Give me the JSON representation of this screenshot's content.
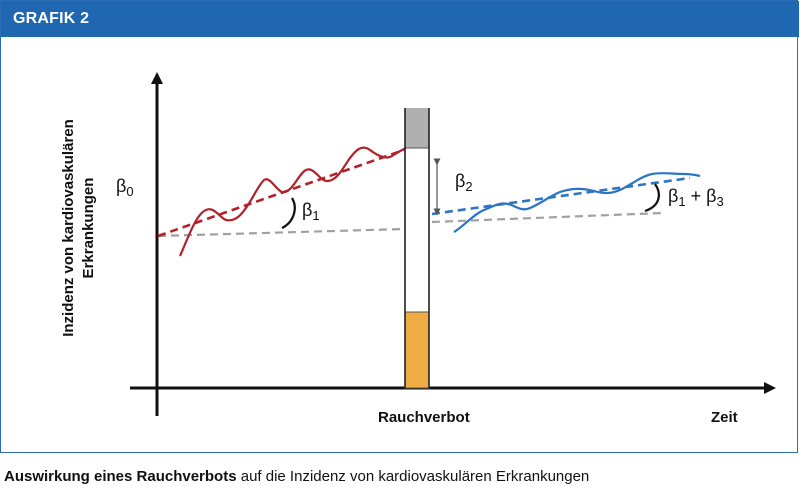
{
  "figure": {
    "label": "GRAFIK 2",
    "header_color": "#1f67b1"
  },
  "diagram": {
    "y_axis_label_line1": "Inzidenz von kardiovaskulären",
    "y_axis_label_line2": "Erkrankungen",
    "x_axis_label": "Zeit",
    "intervention_label": "Rauchverbot",
    "beta0": {
      "base": "β",
      "sub": "0"
    },
    "beta1_left": {
      "base": "β",
      "sub": "1"
    },
    "beta2": {
      "base": "β",
      "sub": "2"
    },
    "beta1_beta3": {
      "base1": "β",
      "sub1": "1",
      "plus": " + ",
      "base2": "β",
      "sub2": "3"
    },
    "colors": {
      "pre_series": "#b3202a",
      "post_series": "#2b74c6",
      "baseline": "#a0a0a0",
      "cigarette_filter": "#f0ac44",
      "cigarette_ash": "#b0b0b0"
    }
  },
  "caption": {
    "bold_part": "Auswirkung eines Rauchverbots",
    "rest": " auf die Inzidenz von kardiovaskulären Erkrankungen"
  }
}
